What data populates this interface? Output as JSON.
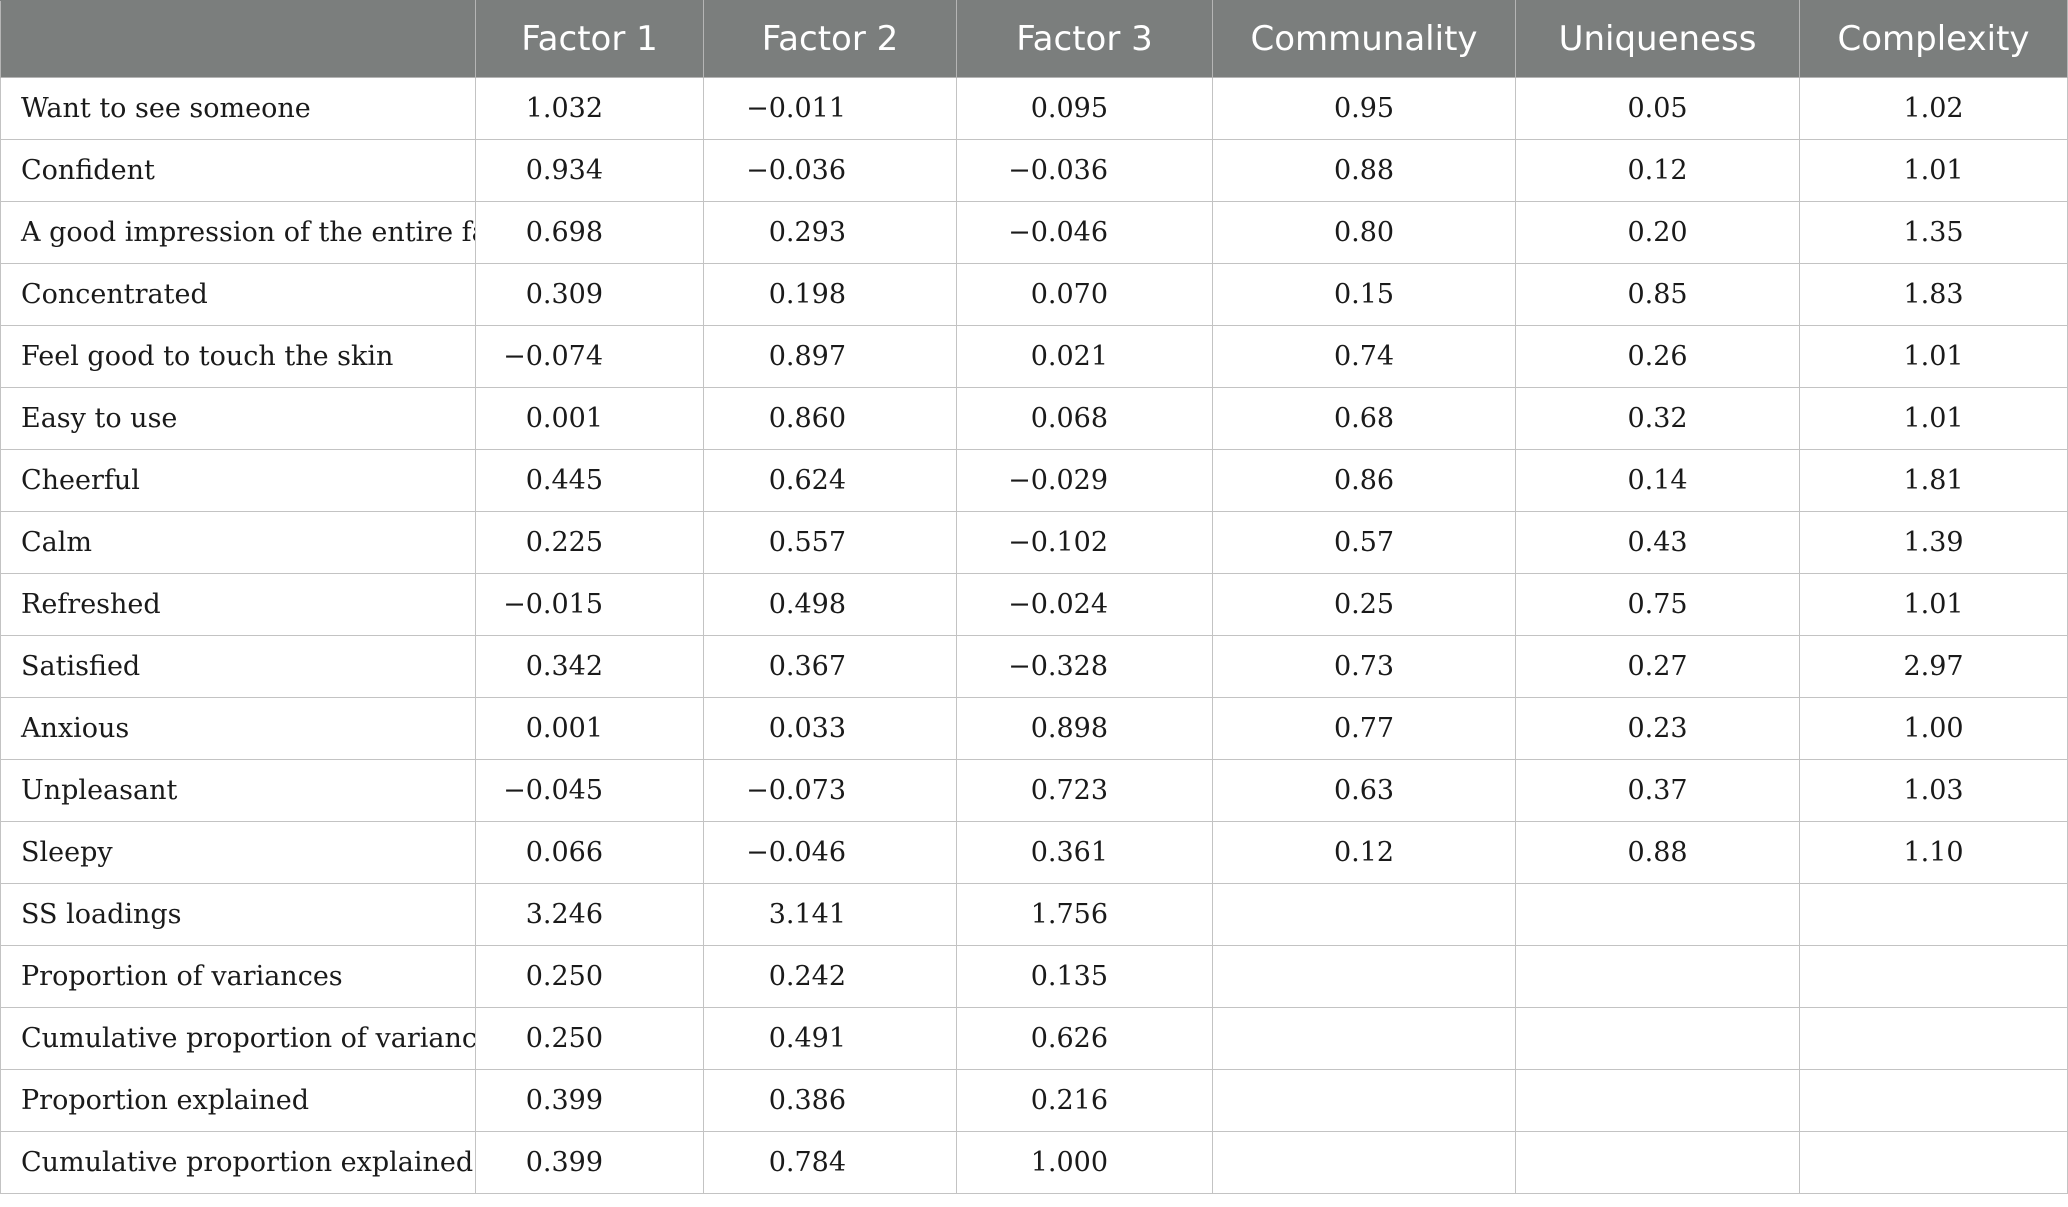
{
  "table": {
    "headers": [
      "",
      "Factor 1",
      "Factor 2",
      "Factor 3",
      "Communality",
      "Uniqueness",
      "Complexity"
    ],
    "rows": [
      {
        "label": "Want to see someone",
        "f1": "1.032",
        "f2": "−0.011",
        "f3": "0.095",
        "communality": "0.95",
        "uniqueness": "0.05",
        "complexity": "1.02"
      },
      {
        "label": "Confident",
        "f1": "0.934",
        "f2": "−0.036",
        "f3": "−0.036",
        "communality": "0.88",
        "uniqueness": "0.12",
        "complexity": "1.01"
      },
      {
        "label": "A good impression of the entire face",
        "f1": "0.698",
        "f2": "0.293",
        "f3": "−0.046",
        "communality": "0.80",
        "uniqueness": "0.20",
        "complexity": "1.35"
      },
      {
        "label": "Concentrated",
        "f1": "0.309",
        "f2": "0.198",
        "f3": "0.070",
        "communality": "0.15",
        "uniqueness": "0.85",
        "complexity": "1.83"
      },
      {
        "label": "Feel good to touch the skin",
        "f1": "−0.074",
        "f2": "0.897",
        "f3": "0.021",
        "communality": "0.74",
        "uniqueness": "0.26",
        "complexity": "1.01"
      },
      {
        "label": "Easy to use",
        "f1": "0.001",
        "f2": "0.860",
        "f3": "0.068",
        "communality": "0.68",
        "uniqueness": "0.32",
        "complexity": "1.01"
      },
      {
        "label": "Cheerful",
        "f1": "0.445",
        "f2": "0.624",
        "f3": "−0.029",
        "communality": "0.86",
        "uniqueness": "0.14",
        "complexity": "1.81"
      },
      {
        "label": "Calm",
        "f1": "0.225",
        "f2": "0.557",
        "f3": "−0.102",
        "communality": "0.57",
        "uniqueness": "0.43",
        "complexity": "1.39"
      },
      {
        "label": "Refreshed",
        "f1": "−0.015",
        "f2": "0.498",
        "f3": "−0.024",
        "communality": "0.25",
        "uniqueness": "0.75",
        "complexity": "1.01"
      },
      {
        "label": "Satisfied",
        "f1": "0.342",
        "f2": "0.367",
        "f3": "−0.328",
        "communality": "0.73",
        "uniqueness": "0.27",
        "complexity": "2.97"
      },
      {
        "label": "Anxious",
        "f1": "0.001",
        "f2": "0.033",
        "f3": "0.898",
        "communality": "0.77",
        "uniqueness": "0.23",
        "complexity": "1.00"
      },
      {
        "label": "Unpleasant",
        "f1": "−0.045",
        "f2": "−0.073",
        "f3": "0.723",
        "communality": "0.63",
        "uniqueness": "0.37",
        "complexity": "1.03"
      },
      {
        "label": "Sleepy",
        "f1": "0.066",
        "f2": "−0.046",
        "f3": "0.361",
        "communality": "0.12",
        "uniqueness": "0.88",
        "complexity": "1.10"
      },
      {
        "label": "SS loadings",
        "f1": "3.246",
        "f2": "3.141",
        "f3": "1.756",
        "communality": "",
        "uniqueness": "",
        "complexity": ""
      },
      {
        "label": "Proportion of variances",
        "f1": "0.250",
        "f2": "0.242",
        "f3": "0.135",
        "communality": "",
        "uniqueness": "",
        "complexity": ""
      },
      {
        "label": "Cumulative proportion of variances",
        "f1": "0.250",
        "f2": "0.491",
        "f3": "0.626",
        "communality": "",
        "uniqueness": "",
        "complexity": ""
      },
      {
        "label": "Proportion explained",
        "f1": "0.399",
        "f2": "0.386",
        "f3": "0.216",
        "communality": "",
        "uniqueness": "",
        "complexity": ""
      },
      {
        "label": "Cumulative proportion explained",
        "f1": "0.399",
        "f2": "0.784",
        "f3": "1.000",
        "communality": "",
        "uniqueness": "",
        "complexity": ""
      }
    ]
  }
}
